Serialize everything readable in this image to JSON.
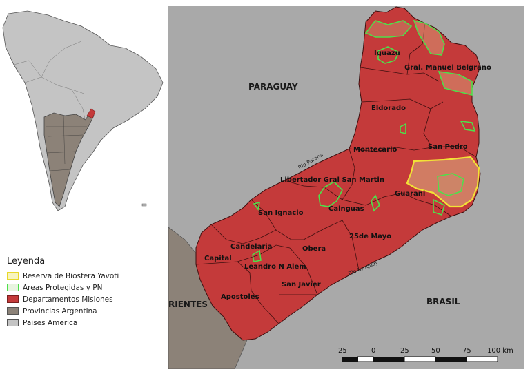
{
  "colors": {
    "biosphere_reserve": "#f2e236",
    "protected_areas": "#4ee04a",
    "departments": "#c43a3a",
    "argentina_provinces": "#8c8278",
    "america_countries": "#c4c4c4",
    "sea": "#ffffff",
    "map_background": "#a9a9a9"
  },
  "legend": {
    "title": "Leyenda",
    "items": [
      {
        "label": "Reserva de Biosfera Yavoti",
        "color": "#f7f4c0",
        "border": "#e8d82a"
      },
      {
        "label": "Areas Protegidas y PN",
        "color": "#e8f4e0",
        "border": "#4ee04a"
      },
      {
        "label": "Departamentos Misiones",
        "color": "#c43a3a",
        "border": "#7a1f1f"
      },
      {
        "label": "Provincias Argentina",
        "color": "#8c8278",
        "border": "#555555"
      },
      {
        "label": "Paises America",
        "color": "#c4c4c4",
        "border": "#555555"
      }
    ]
  },
  "countries": {
    "paraguay": "PARAGUAY",
    "brasil": "BRASIL",
    "corrientes": "RIENTES"
  },
  "rivers": {
    "parana": "Rio Parana",
    "uruguay": "Rio Uruguay"
  },
  "departments": {
    "iguazu": "Iguazu",
    "belgrano": "Gral. Manuel Belgrano",
    "eldorado": "Eldorado",
    "montecarlo": "Montecarlo",
    "san_pedro": "San Pedro",
    "libertador": "Libertador Gral San Martin",
    "guarani": "Guarani",
    "cainguas": "Cainguas",
    "san_ignacio": "San Ignacio",
    "veinticinco": "25de Mayo",
    "candelaria": "Candelaria",
    "obera": "Obera",
    "capital": "Capital",
    "leandro": "Leandro N Alem",
    "san_javier": "San Javier",
    "apostoles": "Apostoles"
  },
  "scale_bar": {
    "labels": [
      "25",
      "0",
      "25",
      "50",
      "75",
      "100 km"
    ]
  },
  "caption": ""
}
